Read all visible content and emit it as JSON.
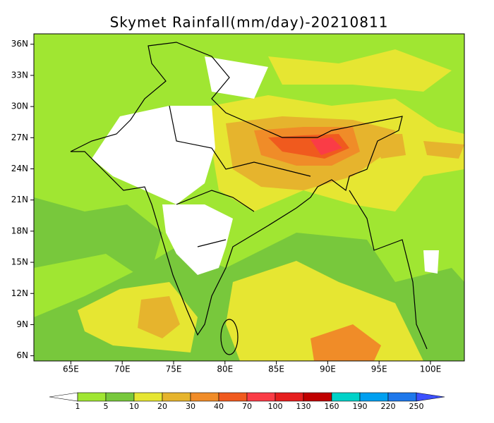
{
  "map": {
    "title": "Skymet Rainfall(mm/day)-20210811",
    "xlim": [
      61.4,
      103.3
    ],
    "ylim": [
      5.5,
      37
    ],
    "xticks": [
      {
        "value": 65,
        "label": "65E"
      },
      {
        "value": 70,
        "label": "70E"
      },
      {
        "value": 75,
        "label": "75E"
      },
      {
        "value": 80,
        "label": "80E"
      },
      {
        "value": 85,
        "label": "85E"
      },
      {
        "value": 90,
        "label": "90E"
      },
      {
        "value": 95,
        "label": "95E"
      },
      {
        "value": 100,
        "label": "100E"
      }
    ],
    "yticks": [
      {
        "value": 6,
        "label": "6N"
      },
      {
        "value": 9,
        "label": "9N"
      },
      {
        "value": 12,
        "label": "12N"
      },
      {
        "value": 15,
        "label": "15N"
      },
      {
        "value": 18,
        "label": "18N"
      },
      {
        "value": 21,
        "label": "21N"
      },
      {
        "value": 24,
        "label": "24N"
      },
      {
        "value": 27,
        "label": "27N"
      },
      {
        "value": 30,
        "label": "30N"
      },
      {
        "value": 33,
        "label": "33N"
      },
      {
        "value": 36,
        "label": "36N"
      }
    ],
    "colorbar": {
      "labels": [
        1,
        5,
        10,
        20,
        30,
        40,
        70,
        100,
        130,
        160,
        190,
        220,
        250
      ],
      "colors": [
        "#ffffff",
        "#a0e632",
        "#78c83c",
        "#e6e632",
        "#e6b42d",
        "#f08c28",
        "#f05a1e",
        "#fa3c46",
        "#e61e1e",
        "#c00000",
        "#00d2c8",
        "#00a0f0",
        "#1e78eb",
        "#3c50ff"
      ]
    }
  }
}
